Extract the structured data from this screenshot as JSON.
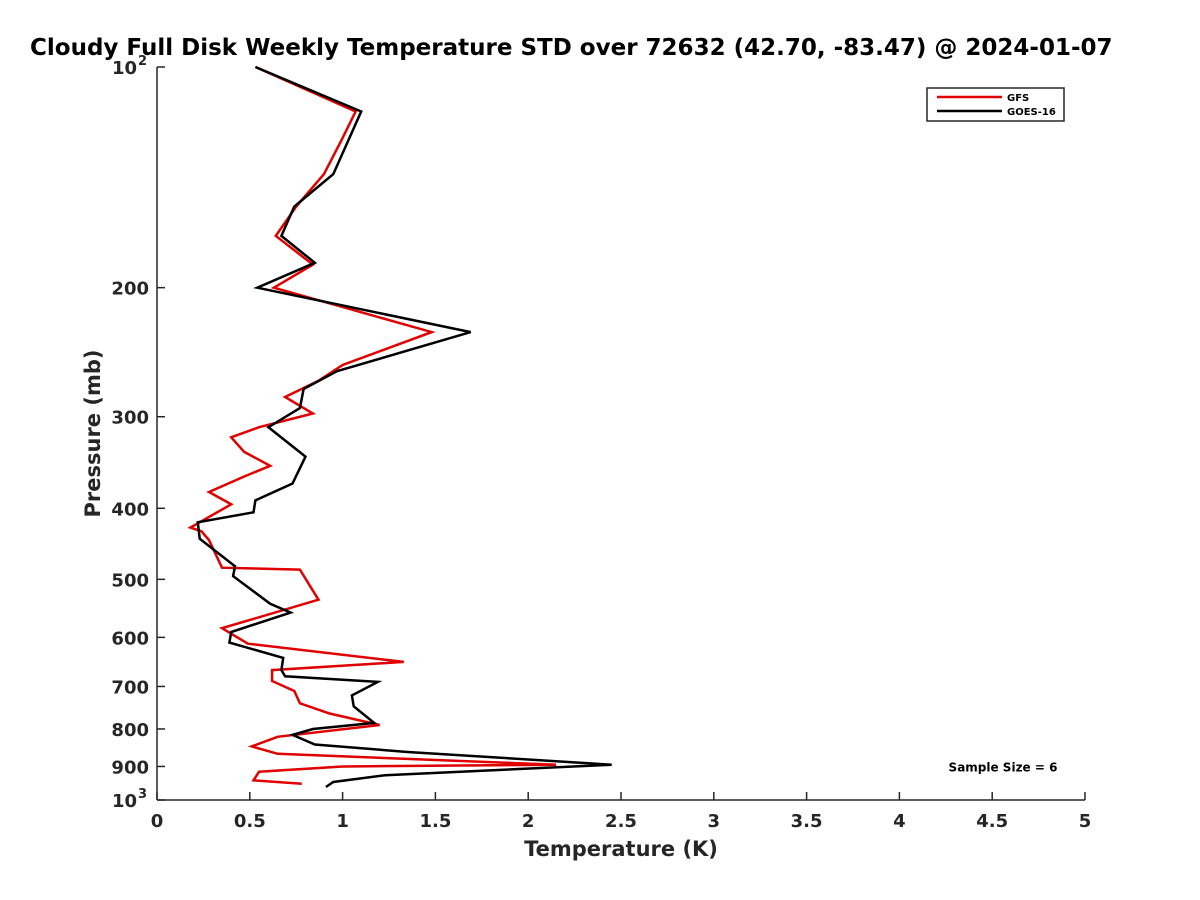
{
  "chart_data": {
    "type": "line",
    "title": "Cloudy Full Disk Weekly Temperature STD over 72632 (42.70, -83.47) @ 2024-01-07",
    "xlabel": "Temperature (K)",
    "ylabel": "Pressure (mb)",
    "xlim": [
      0,
      5
    ],
    "ylim": [
      100,
      1000
    ],
    "y_scale": "log",
    "y_reversed": true,
    "grid": false,
    "legend_position": "top-right",
    "x_ticks": [
      {
        "value": 0,
        "label": "0"
      },
      {
        "value": 0.5,
        "label": "0.5"
      },
      {
        "value": 1,
        "label": "1"
      },
      {
        "value": 1.5,
        "label": "1.5"
      },
      {
        "value": 2,
        "label": "2"
      },
      {
        "value": 2.5,
        "label": "2.5"
      },
      {
        "value": 3,
        "label": "3"
      },
      {
        "value": 3.5,
        "label": "3.5"
      },
      {
        "value": 4,
        "label": "4"
      },
      {
        "value": 4.5,
        "label": "4.5"
      },
      {
        "value": 5,
        "label": "5"
      }
    ],
    "y_ticks": [
      {
        "value": 100,
        "label": "10",
        "sup": "2"
      },
      {
        "value": 200,
        "label": "200"
      },
      {
        "value": 300,
        "label": "300"
      },
      {
        "value": 400,
        "label": "400"
      },
      {
        "value": 500,
        "label": "500"
      },
      {
        "value": 600,
        "label": "600"
      },
      {
        "value": 700,
        "label": "700"
      },
      {
        "value": 800,
        "label": "800"
      },
      {
        "value": 900,
        "label": "900"
      },
      {
        "value": 1000,
        "label": "10",
        "sup": "3"
      }
    ],
    "series": [
      {
        "name": "GFS",
        "color": "#e00000",
        "points": [
          [
            0.53,
            100
          ],
          [
            1.07,
            115
          ],
          [
            1.0,
            125
          ],
          [
            0.9,
            140
          ],
          [
            0.75,
            155
          ],
          [
            0.64,
            170
          ],
          [
            0.84,
            186
          ],
          [
            0.63,
            200
          ],
          [
            1.48,
            230
          ],
          [
            1.0,
            255
          ],
          [
            0.87,
            268
          ],
          [
            0.69,
            282
          ],
          [
            0.84,
            297
          ],
          [
            0.55,
            310
          ],
          [
            0.4,
            320
          ],
          [
            0.47,
            335
          ],
          [
            0.61,
            350
          ],
          [
            0.47,
            362
          ],
          [
            0.28,
            380
          ],
          [
            0.4,
            395
          ],
          [
            0.18,
            425
          ],
          [
            0.24,
            430
          ],
          [
            0.28,
            442
          ],
          [
            0.35,
            482
          ],
          [
            0.77,
            485
          ],
          [
            0.87,
            533
          ],
          [
            0.35,
            583
          ],
          [
            0.49,
            612
          ],
          [
            1.33,
            648
          ],
          [
            0.62,
            665
          ],
          [
            0.62,
            688
          ],
          [
            0.74,
            710
          ],
          [
            0.77,
            738
          ],
          [
            0.93,
            762
          ],
          [
            1.2,
            790
          ],
          [
            0.65,
            820
          ],
          [
            0.51,
            845
          ],
          [
            0.65,
            865
          ],
          [
            2.15,
            895
          ],
          [
            1.0,
            900
          ],
          [
            0.55,
            915
          ],
          [
            0.52,
            940
          ],
          [
            0.78,
            950
          ]
        ]
      },
      {
        "name": "GOES-16",
        "color": "#000000",
        "points": [
          [
            0.53,
            100
          ],
          [
            1.1,
            115
          ],
          [
            0.95,
            140
          ],
          [
            0.74,
            155
          ],
          [
            0.67,
            170
          ],
          [
            0.85,
            185
          ],
          [
            0.54,
            200
          ],
          [
            1.69,
            230
          ],
          [
            0.97,
            260
          ],
          [
            0.79,
            275
          ],
          [
            0.77,
            292
          ],
          [
            0.6,
            310
          ],
          [
            0.8,
            340
          ],
          [
            0.73,
            370
          ],
          [
            0.53,
            390
          ],
          [
            0.52,
            405
          ],
          [
            0.22,
            418
          ],
          [
            0.23,
            440
          ],
          [
            0.42,
            480
          ],
          [
            0.41,
            495
          ],
          [
            0.61,
            540
          ],
          [
            0.72,
            555
          ],
          [
            0.4,
            590
          ],
          [
            0.39,
            610
          ],
          [
            0.68,
            640
          ],
          [
            0.67,
            665
          ],
          [
            0.69,
            678
          ],
          [
            1.19,
            690
          ],
          [
            1.05,
            720
          ],
          [
            1.06,
            745
          ],
          [
            1.17,
            785
          ],
          [
            0.84,
            800
          ],
          [
            0.73,
            815
          ],
          [
            0.85,
            840
          ],
          [
            1.35,
            860
          ],
          [
            2.45,
            895
          ],
          [
            1.23,
            925
          ],
          [
            0.95,
            945
          ],
          [
            0.91,
            960
          ]
        ]
      }
    ],
    "annotations": [
      "Sample Size = 6"
    ]
  }
}
